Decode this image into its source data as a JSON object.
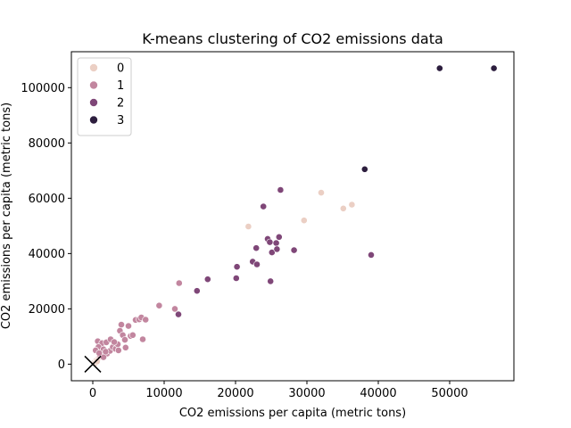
{
  "chart_data": {
    "type": "scatter",
    "title": "K-means clustering of CO2 emissions data",
    "xlabel": "CO2 emissions per capita (metric tons)",
    "ylabel": "CO2 emissions per capita (metric tons)",
    "xlim": [
      -3000,
      59000
    ],
    "ylim": [
      -6000,
      113000
    ],
    "xticks": [
      0,
      10000,
      20000,
      30000,
      40000,
      50000
    ],
    "yticks": [
      0,
      20000,
      40000,
      60000,
      80000,
      100000
    ],
    "grid": false,
    "legend": {
      "placement": "top-left",
      "entries": [
        "0",
        "1",
        "2",
        "3"
      ]
    },
    "series": [
      {
        "name": "0",
        "color": "#ebcfc4",
        "points": [
          [
            21800,
            49800
          ],
          [
            29600,
            52000
          ],
          [
            32000,
            62000
          ],
          [
            35100,
            56300
          ],
          [
            36300,
            57700
          ],
          [
            200,
            600
          ],
          [
            500,
            1400
          ],
          [
            800,
            2100
          ],
          [
            300,
            300
          ],
          [
            1200,
            2600
          ],
          [
            600,
            1000
          ]
        ]
      },
      {
        "name": "1",
        "color": "#c2869f",
        "points": [
          [
            700,
            8300
          ],
          [
            1300,
            7600
          ],
          [
            800,
            6200
          ],
          [
            1500,
            5400
          ],
          [
            1900,
            7900
          ],
          [
            2000,
            3800
          ],
          [
            2400,
            4800
          ],
          [
            2800,
            6200
          ],
          [
            3200,
            5500
          ],
          [
            3500,
            7200
          ],
          [
            3600,
            5000
          ],
          [
            3800,
            12100
          ],
          [
            4000,
            14300
          ],
          [
            4200,
            10500
          ],
          [
            4500,
            8800
          ],
          [
            4600,
            6000
          ],
          [
            5000,
            13800
          ],
          [
            5300,
            10200
          ],
          [
            5600,
            10500
          ],
          [
            6000,
            16000
          ],
          [
            6500,
            16200
          ],
          [
            6800,
            16900
          ],
          [
            7000,
            9000
          ],
          [
            7400,
            16100
          ],
          [
            9300,
            21200
          ],
          [
            11500,
            20000
          ],
          [
            12100,
            29300
          ],
          [
            1000,
            3200
          ],
          [
            1500,
            2500
          ],
          [
            2500,
            9000
          ],
          [
            3000,
            8000
          ],
          [
            1800,
            4500
          ],
          [
            400,
            5000
          ],
          [
            900,
            4000
          ]
        ]
      },
      {
        "name": "2",
        "color": "#7f4778",
        "points": [
          [
            12000,
            18000
          ],
          [
            14600,
            26500
          ],
          [
            16100,
            30700
          ],
          [
            20100,
            31100
          ],
          [
            20200,
            35200
          ],
          [
            22400,
            37100
          ],
          [
            23000,
            36100
          ],
          [
            22900,
            42000
          ],
          [
            23900,
            57000
          ],
          [
            24500,
            45300
          ],
          [
            24800,
            44100
          ],
          [
            24900,
            30000
          ],
          [
            25100,
            40400
          ],
          [
            25700,
            43800
          ],
          [
            25800,
            41600
          ],
          [
            26100,
            46000
          ],
          [
            26300,
            63000
          ],
          [
            28200,
            41200
          ],
          [
            39000,
            39500
          ]
        ]
      },
      {
        "name": "3",
        "color": "#2d1e3e",
        "points": [
          [
            38100,
            70500
          ],
          [
            48600,
            107000
          ],
          [
            56200,
            107000
          ]
        ]
      }
    ],
    "annotations": [
      {
        "marker": "x",
        "x": 0,
        "y": 0,
        "color": "#000000"
      }
    ]
  }
}
